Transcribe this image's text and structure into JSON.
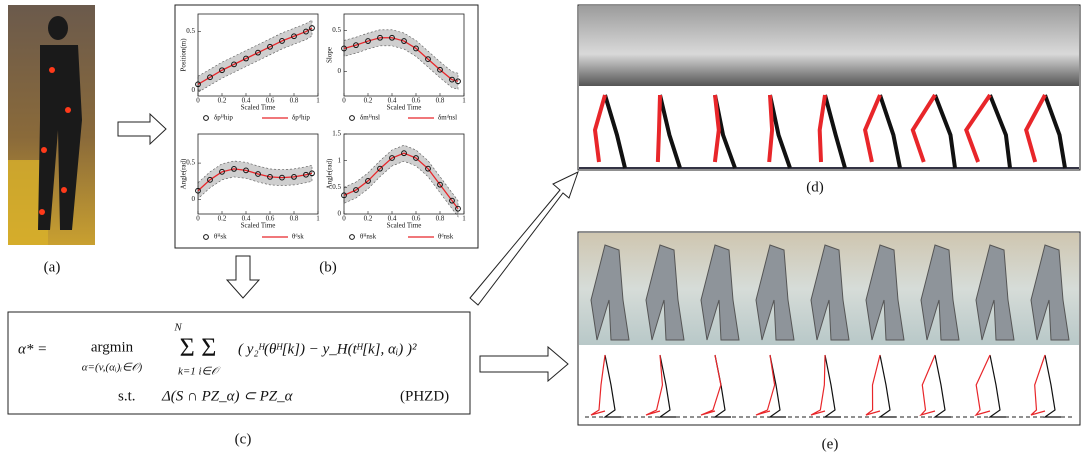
{
  "panels": {
    "a": "(a)",
    "b": "(b)",
    "c": "(c)",
    "d": "(d)",
    "e": "(e)"
  },
  "plots": [
    {
      "ylabel": "Position(m)",
      "xlabel": "Scaled Time",
      "xlim": [
        0,
        1
      ],
      "ylim": [
        -0.05,
        0.65
      ],
      "xticks": [
        0,
        0.2,
        0.4,
        0.6,
        0.8,
        1
      ],
      "yticks": [
        0,
        0.5
      ],
      "legend": [
        "δpᴴhip",
        "δpᵈhip"
      ],
      "x": [
        0,
        0.1,
        0.2,
        0.3,
        0.4,
        0.5,
        0.6,
        0.7,
        0.8,
        0.9,
        0.95
      ],
      "values": [
        0.05,
        0.11,
        0.17,
        0.22,
        0.27,
        0.32,
        0.37,
        0.42,
        0.46,
        0.5,
        0.53
      ]
    },
    {
      "ylabel": "Slope",
      "xlabel": "Scaled Time",
      "xlim": [
        0,
        1
      ],
      "ylim": [
        -0.3,
        0.7
      ],
      "xticks": [
        0,
        0.2,
        0.4,
        0.6,
        0.8,
        1
      ],
      "yticks": [
        0,
        0.5
      ],
      "legend": [
        "δmᴴnsl",
        "δmᵈnsl"
      ],
      "x": [
        0,
        0.1,
        0.2,
        0.3,
        0.4,
        0.5,
        0.6,
        0.7,
        0.8,
        0.9,
        0.95
      ],
      "values": [
        0.28,
        0.32,
        0.37,
        0.41,
        0.41,
        0.37,
        0.28,
        0.15,
        0.02,
        -0.1,
        -0.12
      ]
    },
    {
      "ylabel": "Angle(rad)",
      "xlabel": "Scaled Time",
      "xlim": [
        0,
        1
      ],
      "ylim": [
        -0.2,
        0.9
      ],
      "xticks": [
        0,
        0.2,
        0.4,
        0.6,
        0.8,
        1
      ],
      "yticks": [
        0,
        0.5
      ],
      "legend": [
        "θᴴsk",
        "θᵈsk"
      ],
      "x": [
        0,
        0.1,
        0.2,
        0.3,
        0.4,
        0.5,
        0.6,
        0.7,
        0.8,
        0.9,
        0.95
      ],
      "values": [
        0.12,
        0.27,
        0.38,
        0.42,
        0.4,
        0.35,
        0.31,
        0.3,
        0.31,
        0.34,
        0.36
      ]
    },
    {
      "ylabel": "Angle(rad)",
      "xlabel": "Scaled Time",
      "xlim": [
        0,
        1
      ],
      "ylim": [
        0,
        1.5
      ],
      "xticks": [
        0,
        0.2,
        0.4,
        0.6,
        0.8,
        1
      ],
      "yticks": [
        0,
        0.5,
        1,
        1.5
      ],
      "legend": [
        "θᴴnsk",
        "θᵈnsk"
      ],
      "x": [
        0,
        0.1,
        0.2,
        0.3,
        0.4,
        0.5,
        0.6,
        0.7,
        0.8,
        0.9,
        0.95
      ],
      "values": [
        0.35,
        0.45,
        0.62,
        0.85,
        1.05,
        1.14,
        1.05,
        0.85,
        0.55,
        0.25,
        0.1
      ]
    }
  ],
  "equation": {
    "lhs": "α* =",
    "argmin": "argmin",
    "argmin_sub": "α=(v,(αᵢ)ᵢ∈𝒪)",
    "sum_top": "N",
    "sums": "Σ Σ",
    "sum_sub": "k=1  i∈𝒪",
    "objective": "( y₂ᴴ(θᴴ[k]) − y_H(tᴴ[k], αᵢ) )²",
    "st": "s.t.",
    "constraint": "Δ(S ∩ PZ_α) ⊂ PZ_α",
    "tag": "(PHZD)"
  }
}
